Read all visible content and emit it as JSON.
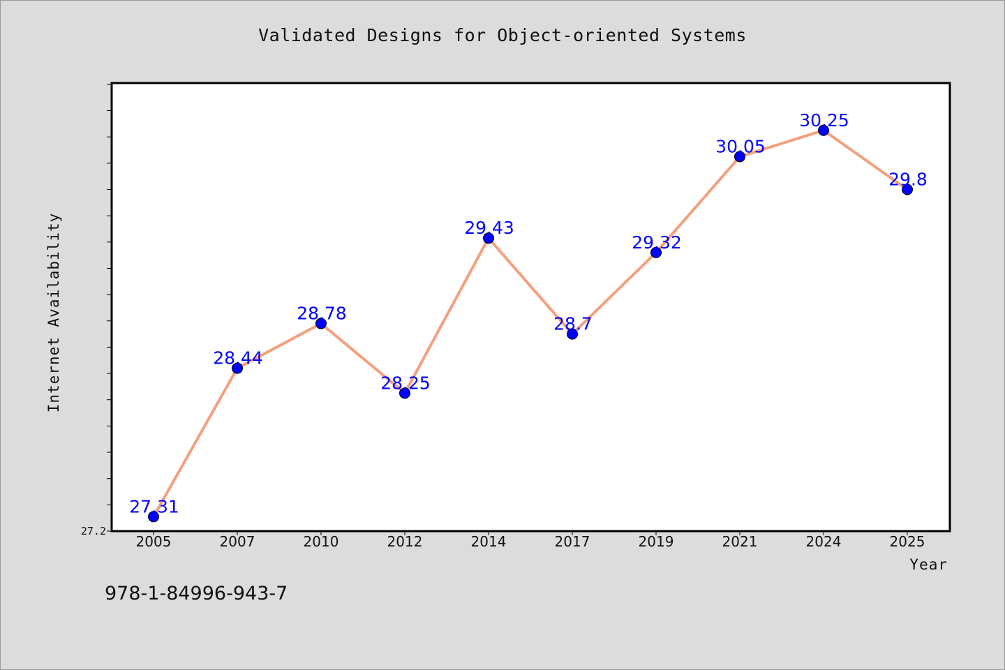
{
  "chart_data": {
    "type": "line",
    "title": "Validated Designs for Object-oriented Systems",
    "xlabel": "Year",
    "ylabel": "Internet Availability",
    "categories": [
      "2005",
      "2007",
      "2010",
      "2012",
      "2014",
      "2017",
      "2019",
      "2021",
      "2024",
      "2025"
    ],
    "series": [
      {
        "values": [
          27.31,
          28.44,
          28.78,
          28.25,
          29.43,
          28.7,
          29.32,
          30.05,
          30.25,
          29.8
        ],
        "line_color": "#f4a07e",
        "marker_color": "#0000ff",
        "data_labels": [
          "27.31",
          "28.44",
          "28.78",
          "28.25",
          "29.43",
          "28.7",
          "29.32",
          "30.05",
          "30.25",
          "29.8"
        ]
      }
    ],
    "ylim": [
      27.2,
      30.61
    ],
    "y_tick_labels": [
      "27.2"
    ],
    "grid": false,
    "legend": "none"
  },
  "footer": {
    "isbn": "978-1-84996-943-7"
  }
}
